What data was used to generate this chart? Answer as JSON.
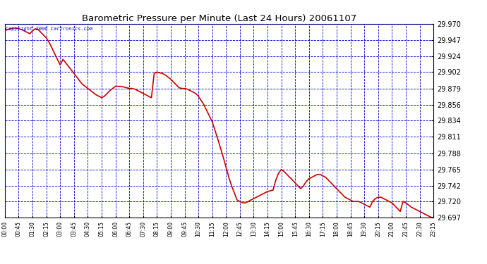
{
  "title": "Barometric Pressure per Minute (Last 24 Hours) 20061107",
  "copyright_text": "Copyright 2006 Cartronics.com",
  "background_color": "#ffffff",
  "plot_bg_color": "#ffffff",
  "grid_color": "#0000cc",
  "line_color": "#cc0000",
  "line_width": 1.2,
  "ylim": [
    29.697,
    29.97
  ],
  "yticks": [
    29.697,
    29.72,
    29.742,
    29.765,
    29.788,
    29.811,
    29.834,
    29.856,
    29.879,
    29.902,
    29.924,
    29.947,
    29.97
  ],
  "xtick_labels": [
    "00:00",
    "00:45",
    "01:30",
    "02:15",
    "03:00",
    "03:45",
    "04:30",
    "05:15",
    "06:00",
    "06:45",
    "07:30",
    "08:15",
    "09:00",
    "09:45",
    "10:30",
    "11:15",
    "12:00",
    "12:45",
    "13:30",
    "14:15",
    "15:00",
    "15:45",
    "16:30",
    "17:15",
    "18:00",
    "18:45",
    "19:30",
    "20:15",
    "21:00",
    "21:45",
    "22:30",
    "23:15"
  ],
  "pressure_data": [
    29.96,
    29.962,
    29.963,
    29.964,
    29.964,
    29.963,
    29.962,
    29.96,
    29.958,
    29.956,
    29.96,
    29.963,
    29.962,
    29.958,
    29.954,
    29.95,
    29.944,
    29.936,
    29.928,
    29.92,
    29.912,
    29.92,
    29.915,
    29.91,
    29.905,
    29.9,
    29.895,
    29.89,
    29.885,
    29.882,
    29.879,
    29.876,
    29.873,
    29.87,
    29.868,
    29.866,
    29.868,
    29.872,
    29.876,
    29.879,
    29.882,
    29.882,
    29.882,
    29.881,
    29.88,
    29.879,
    29.879,
    29.878,
    29.876,
    29.874,
    29.872,
    29.87,
    29.868,
    29.866,
    29.9,
    29.902,
    29.901,
    29.9,
    29.898,
    29.895,
    29.892,
    29.888,
    29.884,
    29.88,
    29.879,
    29.879,
    29.878,
    29.876,
    29.874,
    29.872,
    29.868,
    29.862,
    29.856,
    29.848,
    29.84,
    29.832,
    29.82,
    29.808,
    29.795,
    29.782,
    29.768,
    29.754,
    29.742,
    29.732,
    29.722,
    29.72,
    29.718,
    29.718,
    29.72,
    29.722,
    29.724,
    29.726,
    29.728,
    29.73,
    29.732,
    29.734,
    29.735,
    29.736,
    29.75,
    29.76,
    29.765,
    29.762,
    29.758,
    29.754,
    29.75,
    29.746,
    29.742,
    29.738,
    29.742,
    29.748,
    29.752,
    29.754,
    29.756,
    29.758,
    29.758,
    29.756,
    29.754,
    29.75,
    29.746,
    29.742,
    29.738,
    29.734,
    29.73,
    29.726,
    29.724,
    29.722,
    29.72,
    29.72,
    29.72,
    29.718,
    29.716,
    29.714,
    29.712,
    29.72,
    29.724,
    29.726,
    29.726,
    29.724,
    29.722,
    29.72,
    29.718,
    29.714,
    29.71,
    29.706,
    29.72,
    29.718,
    29.715,
    29.712,
    29.71,
    29.708,
    29.706,
    29.704,
    29.702,
    29.7,
    29.698,
    29.697
  ]
}
